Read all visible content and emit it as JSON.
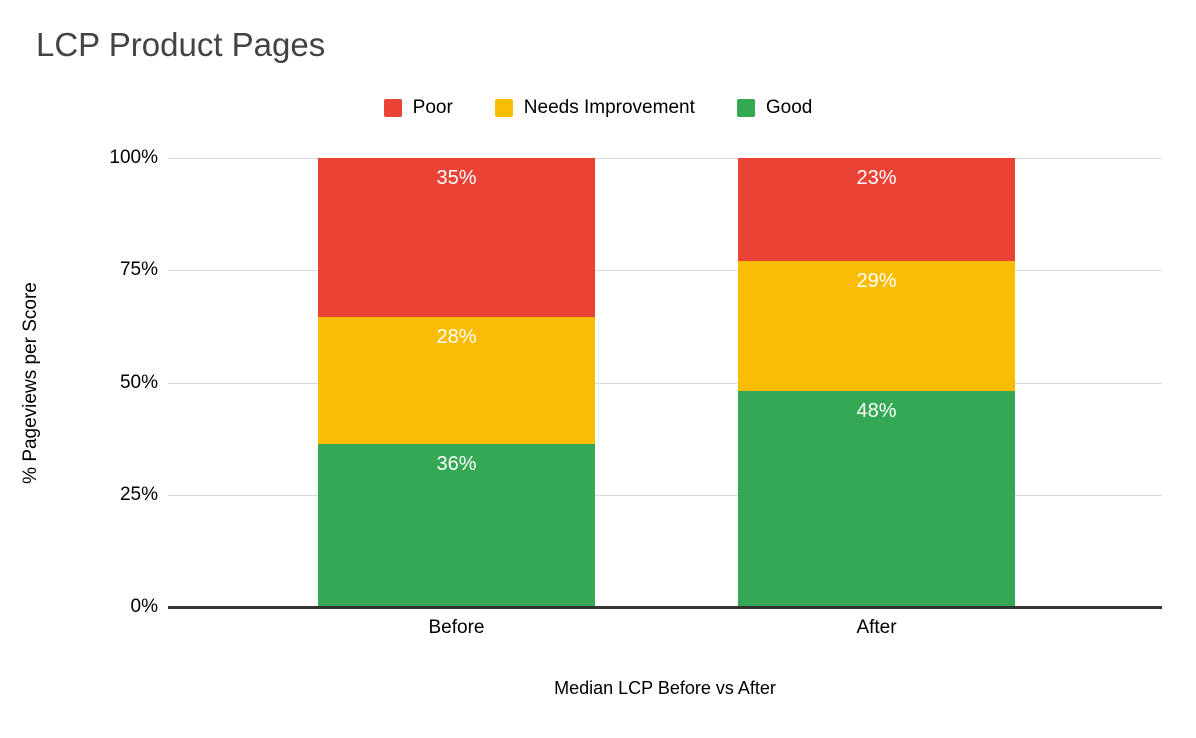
{
  "chart_data": {
    "type": "bar",
    "stacked": true,
    "stacked_as": "percent",
    "title": "LCP Product Pages",
    "categories": [
      "Before",
      "After"
    ],
    "series": [
      {
        "name": "Poor",
        "color": "#ea4335",
        "values": [
          35,
          23
        ],
        "labels": [
          "35%",
          "23%"
        ]
      },
      {
        "name": "Needs Improvement",
        "color": "#fbbc04",
        "values": [
          28,
          29
        ],
        "labels": [
          "28%",
          "29%"
        ]
      },
      {
        "name": "Good",
        "color": "#34a853",
        "values": [
          36,
          48
        ],
        "labels": [
          "36%",
          "48%"
        ]
      }
    ],
    "xlabel": "Median LCP Before vs After",
    "ylabel": "% Pageviews per Score",
    "y_ticks": [
      "0%",
      "25%",
      "50%",
      "75%",
      "100%"
    ],
    "ylim": [
      0,
      100
    ],
    "grid": true,
    "legend_position": "top",
    "legend_entries": [
      "Poor",
      "Needs Improvement",
      "Good"
    ],
    "colors": {
      "title_text": "#434343",
      "axis_text": "#000000",
      "gridline": "#d9d9d9",
      "axis_line": "#333333",
      "data_label_text": "#ffffff",
      "background": "#ffffff"
    }
  }
}
